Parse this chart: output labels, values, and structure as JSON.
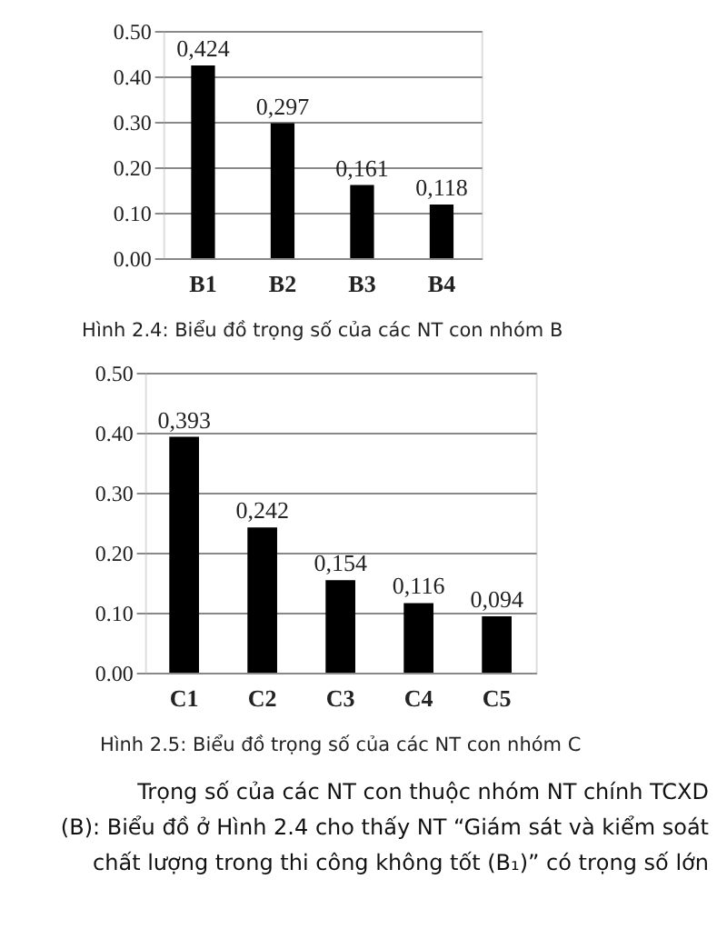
{
  "chart_data": [
    {
      "type": "bar",
      "title": "Hình 2.4: Biểu đồ trọng số của các NT con nhóm B",
      "categories": [
        "B1",
        "B2",
        "B3",
        "B4"
      ],
      "values": [
        0.424,
        0.297,
        0.161,
        0.118
      ],
      "value_labels": [
        "0,424",
        "0,297",
        "0,161",
        "0,118"
      ],
      "color": "#000000",
      "ylim": [
        0,
        0.5
      ],
      "yticks": [
        {
          "value": 0,
          "label": "0.00"
        },
        {
          "value": 0.1,
          "label": "0.10"
        },
        {
          "value": 0.2,
          "label": "0.20"
        },
        {
          "value": 0.3,
          "label": "0.30"
        },
        {
          "value": 0.4,
          "label": "0.40"
        },
        {
          "value": 0.5,
          "label": "0.50"
        }
      ],
      "grid": "y"
    },
    {
      "type": "bar",
      "title": "Hình 2.5: Biểu đồ trọng số của các NT con nhóm C",
      "categories": [
        "C1",
        "C2",
        "C3",
        "C4",
        "C5"
      ],
      "values": [
        0.393,
        0.242,
        0.154,
        0.116,
        0.094
      ],
      "value_labels": [
        "0,393",
        "0,242",
        "0,154",
        "0,116",
        "0,094"
      ],
      "color": "#000000",
      "ylim": [
        0,
        0.5
      ],
      "yticks": [
        {
          "value": 0,
          "label": "0.00"
        },
        {
          "value": 0.1,
          "label": "0.10"
        },
        {
          "value": 0.2,
          "label": "0.20"
        },
        {
          "value": 0.3,
          "label": "0.30"
        },
        {
          "value": 0.4,
          "label": "0.40"
        },
        {
          "value": 0.5,
          "label": "0.50"
        }
      ],
      "grid": "y",
      "annotations": [
        "Trọng số của các NT con thuộc nhóm NT chính TCXD",
        "(B): Biểu đồ ở Hình 2.4 cho thấy NT “Giám sát và kiểm soát",
        "chất lượng trong thi công không tốt (B₁)” có trọng số lớn"
      ]
    }
  ]
}
